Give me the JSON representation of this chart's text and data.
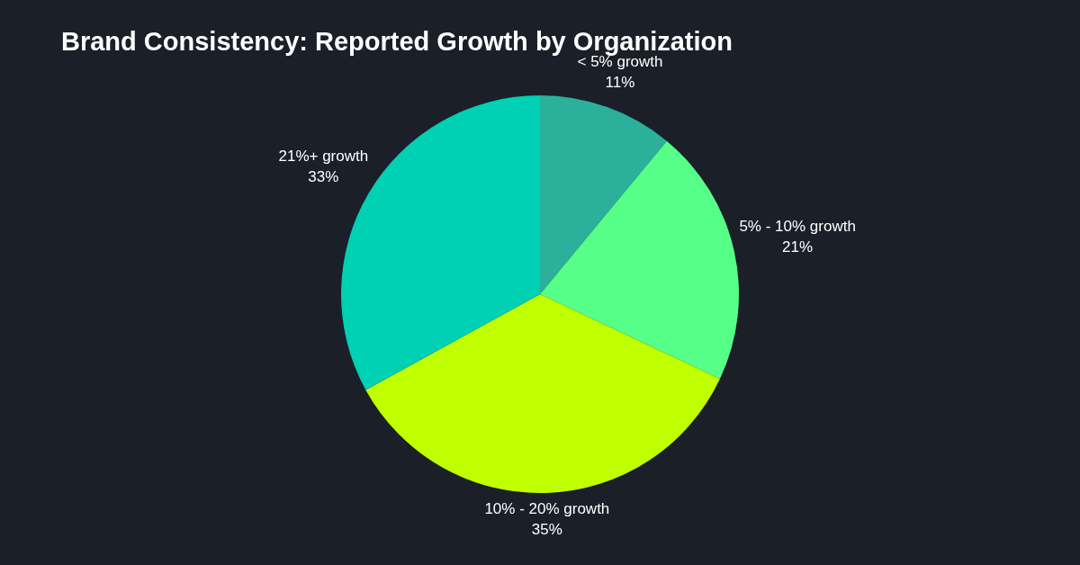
{
  "chart_data": {
    "type": "pie",
    "title": "Brand Consistency: Reported Growth by Organization",
    "categories": [
      "< 5% growth",
      "5% - 10% growth",
      "10% - 20% growth",
      "21%+ growth"
    ],
    "values": [
      11,
      21,
      35,
      33
    ],
    "colors": [
      "#2bb09c",
      "#55ff88",
      "#c0ff00",
      "#00d0b4"
    ],
    "value_labels": [
      "11%",
      "21%",
      "35%",
      "33%"
    ]
  }
}
